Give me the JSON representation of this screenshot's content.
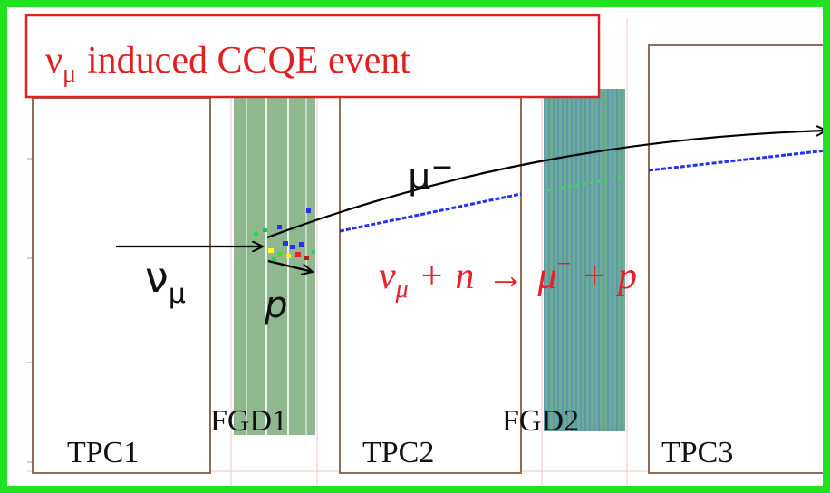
{
  "title": {
    "symbol": "ν",
    "subscript": "μ",
    "text": "induced CCQE event"
  },
  "detectors": {
    "tpc1": "TPC1",
    "tpc2": "TPC2",
    "tpc3": "TPC3",
    "fgd1": "FGD1",
    "fgd2": "FGD2"
  },
  "particles": {
    "muon": "μ",
    "muon_charge": "−",
    "neutrino": "ν",
    "neutrino_sub": "μ",
    "proton": "p"
  },
  "equation": {
    "nu": "ν",
    "nu_sub": "μ",
    "plus1": "+",
    "neutron": "n",
    "arrow": "→",
    "mu": "μ",
    "mu_charge": "−",
    "plus2": "+",
    "proton": "p"
  },
  "colors": {
    "frame": "#22e022",
    "title": "#e02020",
    "equation": "#e8202a",
    "detector_border": "#8b6f5a",
    "fgd1_fill": "#8fb88f",
    "fgd2_fill": "#6aa89a",
    "track": "#2233ee"
  }
}
